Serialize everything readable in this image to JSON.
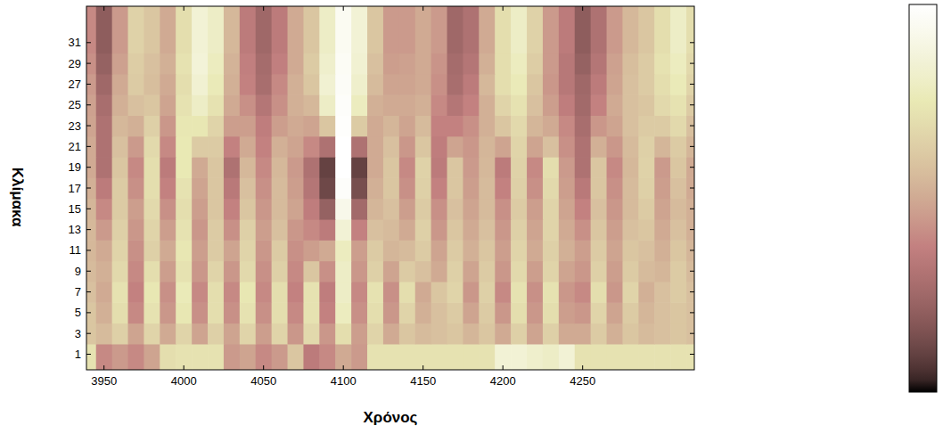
{
  "chart_data": {
    "type": "heatmap",
    "xlabel": "Χρόνος",
    "ylabel": "Κλίμακα",
    "color": "pink",
    "x": [
      3940,
      3950,
      3960,
      3970,
      3980,
      3990,
      4000,
      4010,
      4020,
      4030,
      4040,
      4050,
      4060,
      4070,
      4080,
      4090,
      4100,
      4110,
      4120,
      4130,
      4140,
      4150,
      4160,
      4170,
      4180,
      4190,
      4200,
      4210,
      4220,
      4230,
      4240,
      4250,
      4260,
      4270,
      4280,
      4290,
      4300,
      4310,
      4320
    ],
    "y": [
      1,
      3,
      5,
      7,
      9,
      11,
      13,
      15,
      17,
      19,
      21,
      23,
      25,
      27,
      29,
      31
    ],
    "values": [
      [
        72,
        40,
        45,
        40,
        48,
        70,
        72,
        72,
        72,
        45,
        48,
        40,
        45,
        60,
        35,
        40,
        50,
        45,
        72,
        72,
        72,
        72,
        72,
        72,
        72,
        72,
        85,
        85,
        82,
        80,
        85,
        72,
        72,
        72,
        72,
        72,
        72,
        72,
        72
      ],
      [
        60,
        56,
        64,
        48,
        66,
        50,
        66,
        48,
        64,
        48,
        66,
        46,
        66,
        44,
        68,
        44,
        70,
        46,
        66,
        50,
        60,
        56,
        58,
        60,
        54,
        60,
        50,
        64,
        48,
        64,
        50,
        50,
        62,
        52,
        60,
        56,
        58,
        60,
        58
      ],
      [
        60,
        52,
        70,
        40,
        72,
        44,
        74,
        42,
        70,
        42,
        72,
        42,
        70,
        40,
        72,
        38,
        78,
        42,
        70,
        44,
        66,
        52,
        58,
        62,
        48,
        62,
        44,
        70,
        44,
        70,
        46,
        44,
        66,
        48,
        62,
        54,
        58,
        60,
        58
      ],
      [
        58,
        50,
        72,
        38,
        74,
        42,
        76,
        40,
        70,
        40,
        74,
        40,
        70,
        38,
        72,
        36,
        80,
        40,
        72,
        42,
        70,
        50,
        60,
        66,
        44,
        64,
        40,
        72,
        42,
        72,
        44,
        40,
        70,
        44,
        66,
        52,
        58,
        62,
        58
      ],
      [
        56,
        52,
        68,
        40,
        70,
        46,
        72,
        44,
        66,
        44,
        68,
        42,
        64,
        40,
        60,
        42,
        80,
        44,
        64,
        48,
        62,
        58,
        50,
        64,
        48,
        62,
        44,
        68,
        46,
        66,
        48,
        44,
        64,
        46,
        62,
        56,
        54,
        62,
        56
      ],
      [
        55,
        50,
        66,
        42,
        64,
        50,
        74,
        46,
        62,
        48,
        66,
        44,
        62,
        42,
        46,
        50,
        78,
        46,
        62,
        54,
        56,
        62,
        48,
        62,
        52,
        60,
        46,
        66,
        50,
        64,
        52,
        46,
        62,
        48,
        60,
        58,
        52,
        60,
        54
      ],
      [
        55,
        45,
        64,
        44,
        66,
        46,
        72,
        44,
        62,
        42,
        64,
        46,
        58,
        44,
        40,
        35,
        85,
        38,
        58,
        56,
        50,
        64,
        44,
        60,
        50,
        58,
        44,
        64,
        48,
        66,
        50,
        42,
        60,
        46,
        58,
        60,
        50,
        58,
        52
      ],
      [
        54,
        40,
        62,
        46,
        68,
        42,
        70,
        46,
        60,
        38,
        60,
        44,
        56,
        48,
        36,
        22,
        92,
        26,
        54,
        58,
        46,
        62,
        42,
        58,
        48,
        56,
        42,
        62,
        46,
        66,
        48,
        38,
        58,
        44,
        56,
        62,
        48,
        56,
        52
      ],
      [
        52,
        35,
        62,
        42,
        70,
        38,
        72,
        48,
        60,
        34,
        58,
        42,
        56,
        46,
        32,
        12,
        98,
        14,
        52,
        60,
        42,
        64,
        38,
        60,
        46,
        56,
        38,
        64,
        42,
        68,
        46,
        34,
        60,
        42,
        56,
        64,
        46,
        58,
        50
      ],
      [
        50,
        30,
        60,
        40,
        70,
        35,
        75,
        50,
        60,
        30,
        55,
        40,
        55,
        45,
        30,
        10,
        100,
        10,
        50,
        60,
        40,
        65,
        35,
        60,
        45,
        55,
        35,
        65,
        40,
        70,
        45,
        30,
        60,
        40,
        55,
        65,
        45,
        60,
        50
      ],
      [
        50,
        30,
        58,
        45,
        68,
        40,
        75,
        62,
        62,
        38,
        50,
        38,
        52,
        48,
        40,
        30,
        100,
        30,
        50,
        58,
        44,
        60,
        36,
        48,
        44,
        54,
        48,
        66,
        48,
        58,
        42,
        30,
        52,
        44,
        56,
        64,
        54,
        62,
        54
      ],
      [
        48,
        30,
        55,
        52,
        64,
        44,
        74,
        74,
        66,
        46,
        46,
        36,
        46,
        50,
        48,
        60,
        99,
        62,
        50,
        54,
        48,
        56,
        38,
        38,
        42,
        52,
        60,
        68,
        54,
        50,
        40,
        28,
        44,
        48,
        58,
        62,
        62,
        68,
        58
      ],
      [
        47,
        28,
        52,
        58,
        60,
        48,
        72,
        80,
        72,
        50,
        42,
        32,
        42,
        52,
        55,
        80,
        98,
        78,
        52,
        50,
        50,
        52,
        40,
        32,
        38,
        52,
        66,
        72,
        58,
        46,
        36,
        26,
        38,
        50,
        58,
        60,
        68,
        72,
        62
      ],
      [
        45,
        25,
        50,
        62,
        57,
        50,
        70,
        84,
        76,
        52,
        38,
        28,
        40,
        52,
        60,
        84,
        97,
        82,
        56,
        48,
        48,
        50,
        42,
        28,
        35,
        55,
        70,
        76,
        60,
        44,
        33,
        25,
        35,
        48,
        58,
        62,
        70,
        76,
        66
      ],
      [
        42,
        22,
        47,
        63,
        58,
        52,
        72,
        86,
        78,
        53,
        37,
        27,
        37,
        50,
        62,
        82,
        96,
        84,
        58,
        46,
        47,
        50,
        43,
        27,
        32,
        52,
        70,
        78,
        63,
        45,
        33,
        22,
        32,
        47,
        57,
        62,
        72,
        78,
        68
      ],
      [
        40,
        20,
        45,
        65,
        60,
        50,
        70,
        85,
        80,
        55,
        35,
        25,
        35,
        50,
        60,
        80,
        95,
        85,
        60,
        45,
        45,
        50,
        45,
        25,
        30,
        50,
        70,
        80,
        65,
        45,
        35,
        20,
        30,
        45,
        55,
        60,
        70,
        80,
        70
      ]
    ],
    "xlim": [
      3939,
      4320
    ],
    "ylim": [
      -0.5,
      34.5
    ],
    "xticks": [
      3950,
      4000,
      4050,
      4100,
      4150,
      4200,
      4250
    ],
    "yticks": [
      1,
      3,
      5,
      7,
      9,
      11,
      13,
      15,
      17,
      19,
      21,
      23,
      25,
      27,
      29,
      31
    ],
    "colorbar_range": [
      0,
      100
    ]
  }
}
